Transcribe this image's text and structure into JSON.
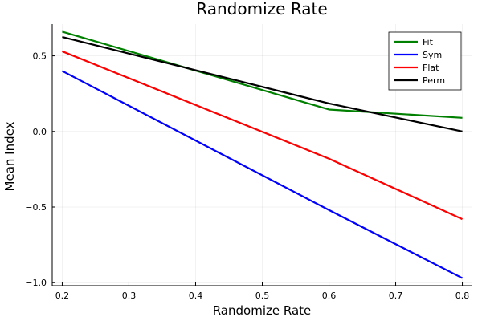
{
  "chart_data": {
    "type": "line",
    "title": "Randomize Rate",
    "xlabel": "Randomize Rate",
    "ylabel": "Mean Index",
    "x": [
      0.2,
      0.6,
      0.8
    ],
    "xticks": [
      "0.2",
      "0.3",
      "0.4",
      "0.5",
      "0.6",
      "0.7",
      "0.8"
    ],
    "yticks": [
      "0.5",
      "0.0",
      "−0.5",
      "−1.0"
    ],
    "xlim": [
      0.185,
      0.815
    ],
    "ylim": [
      -1.02,
      0.71
    ],
    "grid": true,
    "legend_position": "top-right",
    "series": [
      {
        "name": "Fit",
        "color": "#008000",
        "values": [
          0.66,
          0.145,
          0.09
        ]
      },
      {
        "name": "Sym",
        "color": "#0000ff",
        "values": [
          0.4,
          -0.52,
          -0.97
        ]
      },
      {
        "name": "Flat",
        "color": "#ff0000",
        "values": [
          0.53,
          -0.18,
          -0.58
        ]
      },
      {
        "name": "Perm",
        "color": "#000000",
        "values": [
          0.625,
          0.185,
          0.0
        ]
      }
    ]
  }
}
